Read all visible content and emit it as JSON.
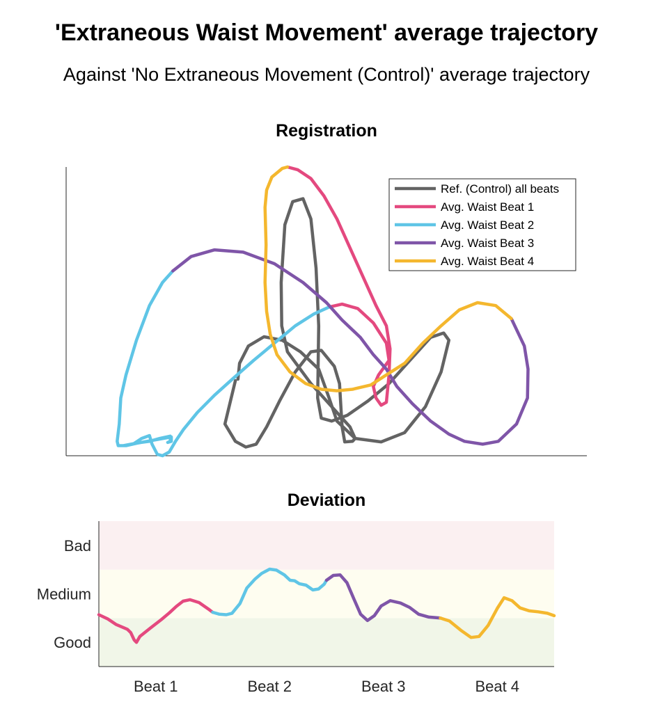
{
  "title": "'Extraneous Waist Movement' average trajectory",
  "subtitle": "Against 'No Extraneous Movement (Control)' average trajectory",
  "colors": {
    "reference": "#636363",
    "beat1": "#e4497f",
    "beat2": "#5fc5e6",
    "beat3": "#7f55a8",
    "beat4": "#f4b72e",
    "band_bad": "#fbf0f1",
    "band_medium": "#fefdf0",
    "band_good": "#f1f6e8"
  },
  "chart_data": [
    {
      "type": "line",
      "title": "Registration",
      "xlabel": "",
      "ylabel": "",
      "axes": "unlabeled (no ticks)",
      "xlim": [
        0,
        100
      ],
      "ylim": [
        0,
        100
      ],
      "legend": {
        "position": "top-right",
        "entries": [
          "Ref. (Control) all beats",
          "Avg. Waist Beat 1",
          "Avg. Waist Beat 2",
          "Avg. Waist Beat 3",
          "Avg. Waist Beat 4"
        ]
      },
      "series": [
        {
          "name": "Ref. (Control) all beats",
          "color_key": "reference",
          "points": [
            [
              33,
              26.5
            ],
            [
              33.3,
              32
            ],
            [
              35,
              38
            ],
            [
              38,
              41.2
            ],
            [
              41.5,
              40
            ],
            [
              45,
              36
            ],
            [
              48.5,
              30
            ],
            [
              50.5,
              20
            ],
            [
              52,
              12
            ],
            [
              55.5,
              6
            ],
            [
              60.5,
              4.8
            ],
            [
              65,
              8
            ],
            [
              69,
              17
            ],
            [
              72,
              29
            ],
            [
              73.5,
              40
            ],
            [
              72.5,
              42.5
            ],
            [
              70,
              41
            ],
            [
              66,
              33
            ],
            [
              62,
              25
            ],
            [
              58,
              19
            ],
            [
              54,
              14
            ],
            [
              51,
              12
            ],
            [
              49,
              13
            ],
            [
              48.3,
              20
            ],
            [
              48.5,
              45
            ],
            [
              48,
              65
            ],
            [
              47,
              82
            ],
            [
              45.5,
              89
            ],
            [
              43.5,
              88
            ],
            [
              42,
              80
            ],
            [
              41.3,
              60
            ],
            [
              41.4,
              45
            ],
            [
              42.5,
              36
            ],
            [
              47,
              25
            ],
            [
              51,
              17
            ],
            [
              54.5,
              10
            ],
            [
              55.5,
              6
            ],
            [
              55,
              5
            ],
            [
              53.5,
              4.8
            ],
            [
              53,
              10
            ],
            [
              52.5,
              25
            ],
            [
              51.5,
              31
            ],
            [
              49,
              36.5
            ],
            [
              47,
              36
            ],
            [
              44,
              29
            ],
            [
              41,
              19
            ],
            [
              38.5,
              10
            ],
            [
              36.5,
              4
            ],
            [
              34.5,
              3
            ],
            [
              32.5,
              5
            ],
            [
              30.5,
              11
            ],
            [
              32.5,
              26
            ]
          ]
        },
        {
          "name": "Avg. Waist Beat 1",
          "color_key": "beat1",
          "points": [
            [
              42.5,
              100
            ],
            [
              44.5,
              99
            ],
            [
              47,
              96
            ],
            [
              49.5,
              90
            ],
            [
              52,
              82
            ],
            [
              54.5,
              72
            ],
            [
              57,
              62
            ],
            [
              59.5,
              52
            ],
            [
              61.5,
              45
            ],
            [
              62.2,
              37
            ],
            [
              62,
              28
            ],
            [
              61.5,
              18.5
            ],
            [
              60.5,
              17.5
            ],
            [
              59.5,
              20
            ],
            [
              59,
              24
            ],
            [
              60,
              28
            ],
            [
              62,
              33
            ],
            [
              61.5,
              39
            ],
            [
              59,
              46
            ],
            [
              56,
              51
            ],
            [
              53,
              52.5
            ],
            [
              50.5,
              51.5
            ]
          ]
        },
        {
          "name": "Avg. Waist Beat 2",
          "color_key": "beat2",
          "points": [
            [
              50.5,
              51.5
            ],
            [
              47.5,
              49
            ],
            [
              44,
              45
            ],
            [
              40,
              39
            ],
            [
              36,
              33
            ],
            [
              32.2,
              27
            ],
            [
              28.5,
              21
            ],
            [
              25.2,
              15
            ],
            [
              22.5,
              9
            ],
            [
              21,
              5
            ],
            [
              19.8,
              1.3
            ],
            [
              18.5,
              0
            ],
            [
              17.5,
              0.5
            ],
            [
              16.5,
              4
            ],
            [
              16,
              7
            ],
            [
              14.5,
              6
            ],
            [
              13,
              4.2
            ],
            [
              11,
              3.5
            ],
            [
              20.2,
              6.5
            ],
            [
              20.2,
              5
            ],
            [
              19.5,
              4.6
            ],
            [
              20,
              5
            ],
            [
              20,
              6.8
            ],
            [
              18,
              6
            ],
            [
              16,
              5
            ],
            [
              14,
              4.5
            ],
            [
              11.5,
              3.5
            ],
            [
              10,
              3.5
            ],
            [
              9.8,
              5
            ],
            [
              10.2,
              11
            ],
            [
              10.5,
              20
            ],
            [
              11.5,
              28
            ],
            [
              13.5,
              40
            ],
            [
              16,
              52
            ],
            [
              18.5,
              60
            ],
            [
              20.5,
              64
            ]
          ]
        },
        {
          "name": "Avg. Waist Beat 3",
          "color_key": "beat3",
          "points": [
            [
              20.5,
              64
            ],
            [
              24,
              69
            ],
            [
              28.5,
              71.3
            ],
            [
              34,
              70.5
            ],
            [
              40,
              66.5
            ],
            [
              45.5,
              60
            ],
            [
              50,
              53
            ],
            [
              53,
              47
            ],
            [
              56.5,
              41
            ],
            [
              59,
              35
            ],
            [
              61.5,
              30
            ],
            [
              63.5,
              24
            ],
            [
              66.5,
              18
            ],
            [
              70,
              12
            ],
            [
              73.5,
              7.5
            ],
            [
              76.5,
              5
            ],
            [
              80,
              4
            ],
            [
              83,
              5
            ],
            [
              86.5,
              11
            ],
            [
              88.6,
              20
            ],
            [
              88.7,
              30
            ],
            [
              88,
              38
            ],
            [
              85.5,
              47.5
            ]
          ]
        },
        {
          "name": "Avg. Waist Beat 4",
          "color_key": "beat4",
          "points": [
            [
              85.5,
              47.5
            ],
            [
              82.5,
              52
            ],
            [
              79,
              53
            ],
            [
              75.5,
              50.5
            ],
            [
              72,
              45
            ],
            [
              68.5,
              39
            ],
            [
              65,
              32
            ],
            [
              61.5,
              28
            ],
            [
              58.5,
              24.5
            ],
            [
              55,
              23
            ],
            [
              52,
              22.5
            ],
            [
              49,
              23
            ],
            [
              46,
              25
            ],
            [
              43,
              29
            ],
            [
              40.5,
              35
            ],
            [
              39.2,
              42
            ],
            [
              38.5,
              50
            ],
            [
              38.2,
              60
            ],
            [
              38.4,
              73
            ],
            [
              38.2,
              86
            ],
            [
              38.5,
              92
            ],
            [
              39.5,
              96.5
            ],
            [
              41.5,
              99.5
            ],
            [
              42.5,
              100
            ]
          ]
        }
      ]
    },
    {
      "type": "line",
      "title": "Deviation",
      "categories": [
        "Beat 1",
        "Beat 2",
        "Beat 3",
        "Beat 4"
      ],
      "y_categories": [
        "Good",
        "Medium",
        "Bad"
      ],
      "ylim": [
        0,
        3
      ],
      "xlim": [
        0,
        4
      ],
      "bands": [
        {
          "label": "Good",
          "range": [
            0,
            1
          ],
          "color_key": "band_good"
        },
        {
          "label": "Medium",
          "range": [
            1,
            2
          ],
          "color_key": "band_medium"
        },
        {
          "label": "Bad",
          "range": [
            2,
            3
          ],
          "color_key": "band_bad"
        }
      ],
      "series": [
        {
          "name": "Avg. Waist Beat 1",
          "color_key": "beat1",
          "points": [
            [
              0,
              1.07
            ],
            [
              0.08,
              0.98
            ],
            [
              0.15,
              0.87
            ],
            [
              0.22,
              0.8
            ],
            [
              0.25,
              0.77
            ],
            [
              0.28,
              0.7
            ],
            [
              0.31,
              0.55
            ],
            [
              0.33,
              0.5
            ],
            [
              0.36,
              0.62
            ],
            [
              0.45,
              0.79
            ],
            [
              0.55,
              0.97
            ],
            [
              0.62,
              1.11
            ],
            [
              0.68,
              1.24
            ],
            [
              0.74,
              1.35
            ],
            [
              0.8,
              1.38
            ],
            [
              0.88,
              1.32
            ],
            [
              0.96,
              1.19
            ],
            [
              1.0,
              1.12
            ]
          ]
        },
        {
          "name": "Avg. Waist Beat 2",
          "color_key": "beat2",
          "points": [
            [
              1.0,
              1.12
            ],
            [
              1.06,
              1.08
            ],
            [
              1.12,
              1.07
            ],
            [
              1.17,
              1.1
            ],
            [
              1.24,
              1.3
            ],
            [
              1.3,
              1.62
            ],
            [
              1.37,
              1.8
            ],
            [
              1.43,
              1.92
            ],
            [
              1.5,
              2.01
            ],
            [
              1.56,
              1.99
            ],
            [
              1.63,
              1.89
            ],
            [
              1.68,
              1.78
            ],
            [
              1.72,
              1.77
            ],
            [
              1.76,
              1.71
            ],
            [
              1.82,
              1.68
            ],
            [
              1.88,
              1.58
            ],
            [
              1.93,
              1.6
            ],
            [
              1.98,
              1.7
            ],
            [
              2.0,
              1.78
            ]
          ]
        },
        {
          "name": "Avg. Waist Beat 3",
          "color_key": "beat3",
          "points": [
            [
              2.0,
              1.78
            ],
            [
              2.06,
              1.88
            ],
            [
              2.12,
              1.89
            ],
            [
              2.18,
              1.73
            ],
            [
              2.24,
              1.4
            ],
            [
              2.3,
              1.08
            ],
            [
              2.36,
              0.95
            ],
            [
              2.42,
              1.05
            ],
            [
              2.48,
              1.25
            ],
            [
              2.56,
              1.36
            ],
            [
              2.65,
              1.31
            ],
            [
              2.73,
              1.22
            ],
            [
              2.81,
              1.08
            ],
            [
              2.9,
              1.02
            ],
            [
              3.0,
              1.0
            ]
          ]
        },
        {
          "name": "Avg. Waist Beat 4",
          "color_key": "beat4",
          "points": [
            [
              3.0,
              1.0
            ],
            [
              3.08,
              0.94
            ],
            [
              3.18,
              0.75
            ],
            [
              3.27,
              0.6
            ],
            [
              3.34,
              0.62
            ],
            [
              3.42,
              0.85
            ],
            [
              3.5,
              1.2
            ],
            [
              3.56,
              1.42
            ],
            [
              3.63,
              1.36
            ],
            [
              3.7,
              1.21
            ],
            [
              3.78,
              1.15
            ],
            [
              3.86,
              1.13
            ],
            [
              3.94,
              1.1
            ],
            [
              4.0,
              1.05
            ]
          ]
        }
      ]
    }
  ]
}
